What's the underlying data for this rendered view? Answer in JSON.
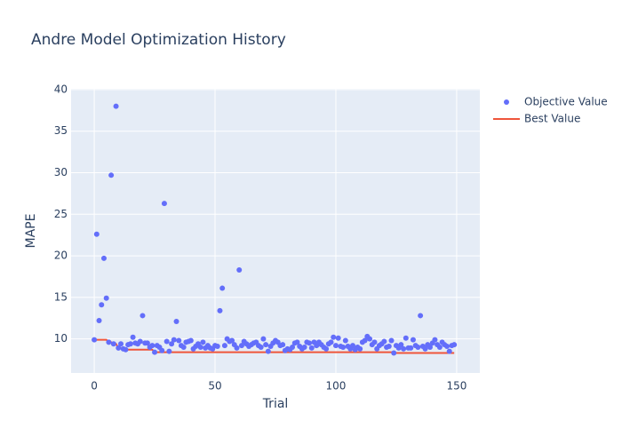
{
  "chart_data": {
    "type": "scatter",
    "title": "Andre Model Optimization History",
    "x_label": "Trial",
    "y_label": "MAPE",
    "x": [
      0,
      1,
      2,
      3,
      4,
      5,
      6,
      7,
      8,
      9,
      10,
      11,
      12,
      13,
      14,
      15,
      16,
      17,
      18,
      19,
      20,
      21,
      22,
      23,
      24,
      25,
      26,
      27,
      28,
      29,
      30,
      31,
      32,
      33,
      34,
      35,
      36,
      37,
      38,
      39,
      40,
      41,
      42,
      43,
      44,
      45,
      46,
      47,
      48,
      49,
      50,
      51,
      52,
      53,
      54,
      55,
      56,
      57,
      58,
      59,
      60,
      61,
      62,
      63,
      64,
      65,
      66,
      67,
      68,
      69,
      70,
      71,
      72,
      73,
      74,
      75,
      76,
      77,
      78,
      79,
      80,
      81,
      82,
      83,
      84,
      85,
      86,
      87,
      88,
      89,
      90,
      91,
      92,
      93,
      94,
      95,
      96,
      97,
      98,
      99,
      100,
      101,
      102,
      103,
      104,
      105,
      106,
      107,
      108,
      109,
      110,
      111,
      112,
      113,
      114,
      115,
      116,
      117,
      118,
      119,
      120,
      121,
      122,
      123,
      124,
      125,
      126,
      127,
      128,
      129,
      130,
      131,
      132,
      133,
      134,
      135,
      136,
      137,
      138,
      139,
      140,
      141,
      142,
      143,
      144,
      145,
      146,
      147,
      148,
      149
    ],
    "series": [
      {
        "name": "Objective Value",
        "color": "#636efa",
        "mode": "markers",
        "values": [
          9.9,
          22.6,
          12.2,
          14.1,
          19.7,
          14.9,
          9.6,
          29.7,
          9.4,
          38.0,
          8.9,
          9.4,
          8.8,
          8.7,
          9.3,
          9.4,
          10.2,
          9.5,
          9.4,
          9.7,
          12.8,
          9.5,
          9.5,
          9.0,
          9.2,
          8.4,
          9.2,
          9.0,
          8.6,
          26.3,
          9.7,
          8.5,
          9.4,
          9.9,
          12.1,
          9.8,
          9.2,
          9.0,
          9.6,
          9.7,
          9.8,
          8.8,
          9.1,
          9.4,
          9.0,
          9.6,
          8.9,
          9.2,
          8.9,
          8.8,
          9.2,
          9.1,
          13.4,
          16.1,
          9.2,
          10.0,
          9.7,
          9.8,
          9.3,
          8.9,
          18.3,
          9.2,
          9.7,
          9.4,
          9.1,
          9.3,
          9.5,
          9.6,
          9.2,
          9.0,
          10.0,
          9.3,
          8.5,
          9.1,
          9.5,
          9.8,
          9.6,
          9.2,
          9.3,
          8.6,
          8.8,
          8.7,
          9.0,
          9.5,
          9.6,
          9.1,
          8.8,
          9.0,
          9.6,
          9.5,
          8.9,
          9.6,
          9.2,
          9.6,
          9.3,
          9.0,
          8.8,
          9.4,
          9.6,
          10.2,
          9.2,
          10.1,
          9.1,
          9.0,
          9.8,
          9.1,
          8.8,
          9.2,
          8.7,
          9.0,
          8.8,
          9.6,
          9.8,
          10.3,
          10.0,
          9.3,
          9.6,
          8.8,
          9.2,
          9.4,
          9.7,
          9.0,
          9.1,
          9.8,
          8.3,
          9.2,
          8.9,
          9.3,
          8.8,
          10.1,
          8.9,
          8.9,
          9.9,
          9.2,
          9.0,
          12.8,
          9.1,
          8.8,
          9.3,
          9.0,
          9.5,
          9.9,
          9.3,
          9.0,
          9.6,
          9.3,
          9.1,
          8.5,
          9.2,
          9.3
        ]
      },
      {
        "name": "Best Value",
        "color": "#ef553b",
        "mode": "lines",
        "values": [
          9.9,
          9.9,
          9.9,
          9.9,
          9.9,
          9.9,
          9.6,
          9.6,
          9.4,
          9.4,
          8.9,
          8.9,
          8.8,
          8.7,
          8.7,
          8.7,
          8.7,
          8.7,
          8.7,
          8.7,
          8.7,
          8.7,
          8.7,
          8.7,
          8.7,
          8.4,
          8.4,
          8.4,
          8.4,
          8.4,
          8.4,
          8.4,
          8.4,
          8.4,
          8.4,
          8.4,
          8.4,
          8.4,
          8.4,
          8.4,
          8.4,
          8.4,
          8.4,
          8.4,
          8.4,
          8.4,
          8.4,
          8.4,
          8.4,
          8.4,
          8.4,
          8.4,
          8.4,
          8.4,
          8.4,
          8.4,
          8.4,
          8.4,
          8.4,
          8.4,
          8.4,
          8.4,
          8.4,
          8.4,
          8.4,
          8.4,
          8.4,
          8.4,
          8.4,
          8.4,
          8.4,
          8.4,
          8.4,
          8.4,
          8.4,
          8.4,
          8.4,
          8.4,
          8.4,
          8.4,
          8.4,
          8.4,
          8.4,
          8.4,
          8.4,
          8.4,
          8.4,
          8.4,
          8.4,
          8.4,
          8.4,
          8.4,
          8.4,
          8.4,
          8.4,
          8.4,
          8.4,
          8.4,
          8.4,
          8.4,
          8.4,
          8.4,
          8.4,
          8.4,
          8.4,
          8.4,
          8.4,
          8.4,
          8.4,
          8.4,
          8.4,
          8.4,
          8.4,
          8.4,
          8.4,
          8.4,
          8.4,
          8.4,
          8.4,
          8.4,
          8.4,
          8.4,
          8.4,
          8.4,
          8.3,
          8.3,
          8.3,
          8.3,
          8.3,
          8.3,
          8.3,
          8.3,
          8.3,
          8.3,
          8.3,
          8.3,
          8.3,
          8.3,
          8.3,
          8.3,
          8.3,
          8.3,
          8.3,
          8.3,
          8.3,
          8.3,
          8.3,
          8.3,
          8.3,
          8.3
        ]
      }
    ],
    "xlim": [
      -9.6,
      159.6
    ],
    "xticks": [
      0,
      50,
      100,
      150
    ],
    "ylim": [
      5.9,
      40.1
    ],
    "yticks": [
      10,
      15,
      20,
      25,
      30,
      35,
      40
    ],
    "grid": true,
    "legend": "right"
  }
}
